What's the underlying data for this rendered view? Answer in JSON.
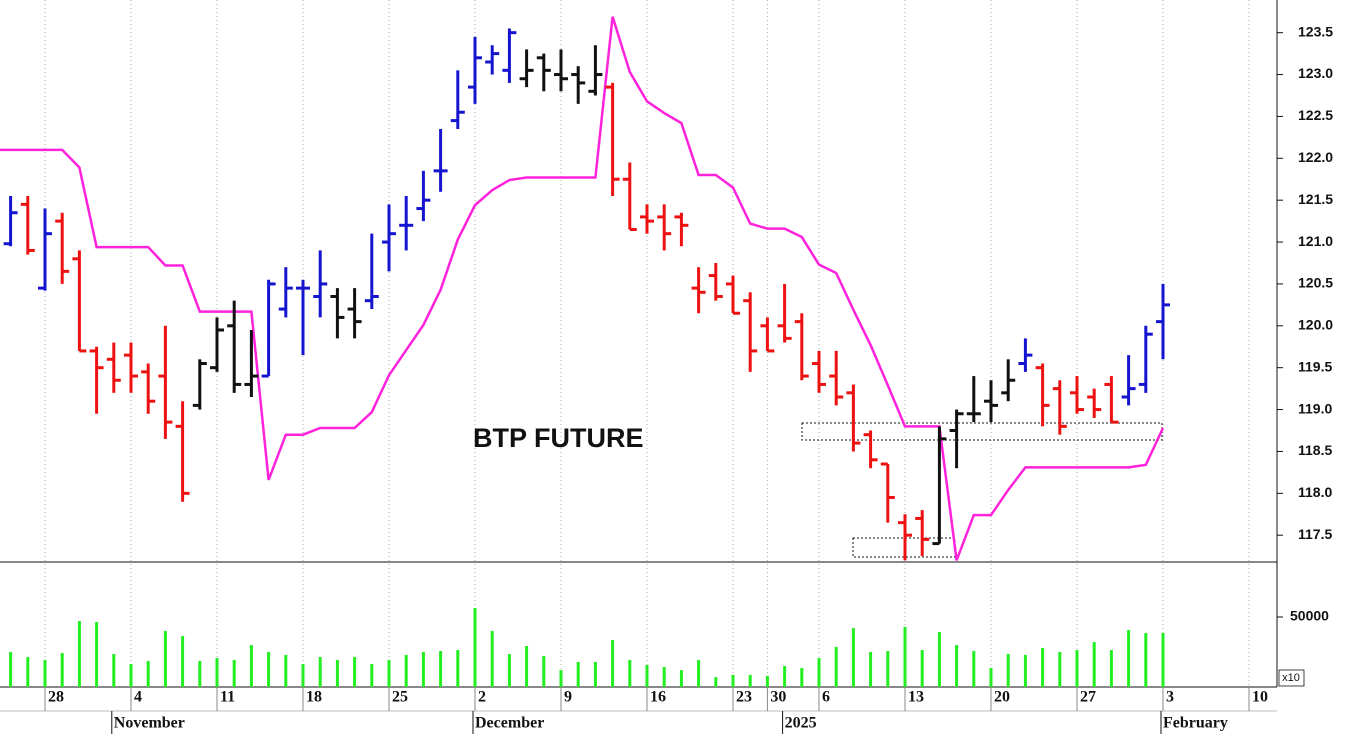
{
  "chart_data": {
    "type": "ohlc",
    "title": "BTP FUTURE",
    "categories": [
      null,
      null,
      "28",
      null,
      null,
      null,
      null,
      "4",
      null,
      null,
      null,
      null,
      "11",
      null,
      null,
      null,
      null,
      "18",
      null,
      null,
      null,
      null,
      "25",
      null,
      null,
      null,
      null,
      "2",
      null,
      null,
      null,
      null,
      "9",
      null,
      null,
      null,
      null,
      "16",
      null,
      null,
      null,
      null,
      "23",
      null,
      "30",
      null,
      null,
      "6",
      null,
      null,
      null,
      null,
      "13",
      null,
      null,
      null,
      null,
      "20",
      null,
      null,
      null,
      null,
      "27",
      null,
      null,
      null,
      null,
      "3",
      null,
      null,
      null,
      null,
      "10"
    ],
    "month_labels": [
      null,
      null,
      null,
      null,
      null,
      null,
      "November",
      null,
      null,
      null,
      null,
      null,
      null,
      null,
      null,
      null,
      null,
      null,
      null,
      null,
      null,
      null,
      null,
      null,
      null,
      null,
      null,
      "December",
      null,
      null,
      null,
      null,
      null,
      null,
      null,
      null,
      null,
      null,
      null,
      null,
      null,
      null,
      null,
      null,
      null,
      "2025",
      null,
      null,
      null,
      null,
      null,
      null,
      null,
      null,
      null,
      null,
      null,
      null,
      null,
      null,
      null,
      null,
      null,
      null,
      null,
      null,
      null,
      "February",
      null,
      null,
      null,
      null,
      null
    ],
    "open": [
      120.98,
      121.45,
      120.45,
      121.25,
      120.8,
      119.7,
      119.6,
      119.65,
      119.45,
      119.4,
      118.8,
      119.05,
      119.5,
      120.0,
      119.3,
      119.4,
      120.2,
      120.45,
      120.35,
      120.35,
      120.2,
      120.3,
      121.0,
      121.2,
      121.4,
      121.85,
      122.45,
      122.85,
      123.15,
      123.05,
      122.95,
      123.2,
      123.0,
      123.0,
      122.8,
      122.85,
      121.75,
      121.3,
      121.3,
      121.3,
      120.45,
      120.6,
      120.5,
      120.3,
      120.0,
      120.0,
      120.05,
      119.55,
      119.4,
      119.2,
      118.7,
      118.35,
      117.65,
      117.7,
      117.4,
      118.75,
      118.95,
      119.1,
      119.2,
      119.55,
      119.5,
      119.25,
      119.2,
      119.15,
      119.3,
      119.15,
      119.3,
      120.05,
      null,
      null,
      null,
      null,
      null
    ],
    "high": [
      121.55,
      121.55,
      121.4,
      121.35,
      120.9,
      119.75,
      119.8,
      119.8,
      119.55,
      120.0,
      119.1,
      119.6,
      120.1,
      120.3,
      119.95,
      120.55,
      120.7,
      120.55,
      120.9,
      120.45,
      120.45,
      121.1,
      121.45,
      121.55,
      121.85,
      122.35,
      123.05,
      123.45,
      123.35,
      123.55,
      123.3,
      123.25,
      123.3,
      123.1,
      123.35,
      122.9,
      121.95,
      121.45,
      121.45,
      121.35,
      120.7,
      120.75,
      120.6,
      120.4,
      120.1,
      120.5,
      120.15,
      119.7,
      119.7,
      119.3,
      118.75,
      118.35,
      117.75,
      117.8,
      118.8,
      119.0,
      119.4,
      119.35,
      119.6,
      119.85,
      119.55,
      119.35,
      119.4,
      119.25,
      119.4,
      119.65,
      120.0,
      120.5,
      null,
      null,
      null,
      null,
      null
    ],
    "low": [
      120.95,
      120.85,
      120.42,
      120.5,
      119.7,
      118.95,
      119.2,
      119.2,
      118.95,
      118.65,
      117.9,
      119.0,
      119.45,
      119.2,
      119.15,
      119.4,
      120.1,
      119.65,
      120.1,
      119.85,
      119.85,
      120.2,
      120.65,
      120.9,
      121.25,
      121.6,
      122.35,
      122.65,
      123.0,
      122.9,
      122.85,
      122.8,
      122.8,
      122.65,
      122.75,
      121.55,
      121.15,
      121.1,
      120.9,
      120.95,
      120.15,
      120.3,
      120.15,
      119.45,
      119.7,
      119.8,
      119.35,
      119.2,
      119.05,
      118.5,
      118.3,
      117.65,
      117.2,
      117.25,
      117.4,
      118.3,
      118.85,
      118.85,
      119.1,
      119.45,
      118.8,
      118.7,
      118.95,
      118.9,
      118.85,
      119.05,
      119.2,
      119.6,
      null,
      null,
      null,
      null,
      null
    ],
    "close": [
      121.35,
      120.9,
      121.1,
      120.65,
      119.7,
      119.5,
      119.35,
      119.4,
      119.1,
      118.85,
      118.0,
      119.55,
      119.95,
      119.3,
      119.4,
      120.5,
      120.45,
      120.45,
      120.5,
      120.1,
      120.05,
      120.35,
      121.1,
      121.2,
      121.5,
      121.85,
      122.55,
      123.2,
      123.25,
      123.5,
      123.05,
      123.05,
      122.95,
      122.9,
      123.0,
      121.75,
      121.15,
      121.25,
      121.1,
      121.2,
      120.4,
      120.35,
      120.15,
      119.7,
      119.7,
      119.85,
      119.4,
      119.3,
      119.15,
      118.6,
      118.4,
      117.95,
      117.5,
      117.45,
      118.65,
      118.95,
      118.95,
      119.05,
      119.35,
      119.65,
      119.05,
      118.8,
      119.0,
      119.0,
      118.85,
      119.25,
      119.9,
      120.25,
      null,
      null,
      null,
      null,
      null
    ],
    "colors": [
      "#1515d0",
      "#ee1111",
      "#1515d0",
      "#ee1111",
      "#ee1111",
      "#ee1111",
      "#ee1111",
      "#ee1111",
      "#ee1111",
      "#ee1111",
      "#ee1111",
      "#111111",
      "#111111",
      "#111111",
      "#111111",
      "#1515d0",
      "#1515d0",
      "#1515d0",
      "#1515d0",
      "#111111",
      "#111111",
      "#1515d0",
      "#1515d0",
      "#1515d0",
      "#1515d0",
      "#1515d0",
      "#1515d0",
      "#1515d0",
      "#1515d0",
      "#1515d0",
      "#111111",
      "#111111",
      "#111111",
      "#111111",
      "#111111",
      "#ee1111",
      "#ee1111",
      "#ee1111",
      "#ee1111",
      "#ee1111",
      "#ee1111",
      "#ee1111",
      "#ee1111",
      "#ee1111",
      "#ee1111",
      "#ee1111",
      "#ee1111",
      "#ee1111",
      "#ee1111",
      "#ee1111",
      "#ee1111",
      "#ee1111",
      "#ee1111",
      "#ee1111",
      "#111111",
      "#111111",
      "#111111",
      "#111111",
      "#111111",
      "#1515d0",
      "#ee1111",
      "#ee1111",
      "#ee1111",
      "#ee1111",
      "#ee1111",
      "#1515d0",
      "#1515d0",
      "#1515d0",
      null,
      null,
      null,
      null,
      null
    ],
    "stop_line": {
      "color": "#ff22dd",
      "values": [
        122.1,
        122.1,
        122.1,
        122.1,
        121.89,
        120.94,
        120.94,
        120.94,
        120.94,
        120.72,
        120.72,
        120.17,
        120.17,
        120.17,
        120.17,
        118.16,
        118.7,
        118.7,
        118.78,
        118.78,
        118.78,
        118.97,
        119.41,
        119.71,
        120.01,
        120.43,
        121.03,
        121.44,
        121.62,
        121.74,
        121.77,
        121.77,
        121.77,
        121.77,
        121.77,
        123.69,
        123.03,
        122.68,
        122.54,
        122.42,
        121.8,
        121.8,
        121.65,
        121.22,
        121.16,
        121.16,
        121.06,
        120.73,
        120.63,
        120.19,
        119.77,
        119.29,
        118.8,
        118.8,
        118.8,
        117.2,
        117.74,
        117.74,
        118.04,
        118.31,
        118.31,
        118.31,
        118.31,
        118.31,
        118.31,
        118.31,
        118.34,
        118.78,
        null,
        null,
        null,
        null,
        null
      ]
    },
    "ylim": [
      117.18,
      123.89
    ],
    "yticks": [
      117.5,
      {
        "value": 118,
        "label": "118.0"
      },
      118.5,
      {
        "value": 119,
        "label": "119.0"
      },
      119.5,
      {
        "value": 120,
        "label": "120.0"
      },
      120.5,
      {
        "value": 121,
        "label": "121.0"
      },
      121.5,
      {
        "value": 122,
        "label": "122.0"
      },
      122.5,
      {
        "value": 123,
        "label": "123.0"
      },
      123.5
    ],
    "grid": true,
    "volume": {
      "type": "bar",
      "color": "#22ee22",
      "values": [
        25000,
        21400,
        19300,
        24300,
        47100,
        46400,
        23600,
        16400,
        18600,
        40000,
        36400,
        18600,
        20700,
        19300,
        30000,
        25000,
        22900,
        16400,
        21400,
        19300,
        21400,
        16400,
        19300,
        22900,
        25000,
        25700,
        26400,
        56400,
        40000,
        23600,
        29300,
        22100,
        12100,
        17900,
        17900,
        33600,
        19300,
        15700,
        14300,
        12100,
        19300,
        7100,
        8600,
        8600,
        7900,
        15000,
        13600,
        20700,
        28600,
        42100,
        25000,
        25700,
        42900,
        26400,
        39300,
        30000,
        25700,
        13600,
        23600,
        22900,
        27900,
        25000,
        26400,
        32100,
        26400,
        40700,
        38600,
        38600,
        null,
        null,
        null,
        null,
        null
      ],
      "ylim": [
        0,
        89300
      ],
      "yticks": [
        50000
      ],
      "scale_note": "x10"
    }
  }
}
